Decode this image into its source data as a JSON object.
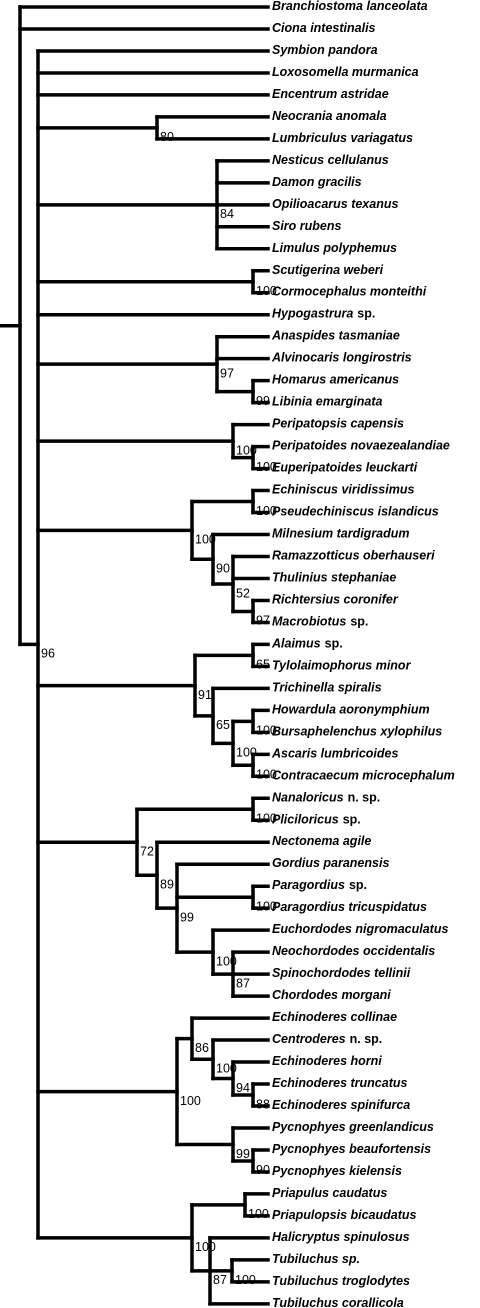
{
  "tree": {
    "children": [
      {
        "name": "Branchiostoma lanceolata"
      },
      {
        "name": "Ciona intestinalis"
      },
      {
        "support": 96,
        "children": [
          {
            "name": "Symbion pandora"
          },
          {
            "name": "Loxosomella murmanica"
          },
          {
            "name": "Encentrum astridae"
          },
          {
            "support": 80,
            "children": [
              {
                "name": "Neocrania anomala"
              },
              {
                "name": "Lumbriculus variagatus"
              }
            ]
          },
          {
            "support": 84,
            "children": [
              {
                "name": "Nesticus cellulanus"
              },
              {
                "name": "Damon gracilis"
              },
              {
                "name": "Opilioacarus texanus"
              },
              {
                "name": "Siro rubens"
              },
              {
                "name": "Limulus polyphemus"
              }
            ]
          },
          {
            "support": 100,
            "children": [
              {
                "name": "Scutigerina weberi"
              },
              {
                "name": "Cormocephalus monteithi"
              }
            ]
          },
          {
            "name": "Hypogastrura",
            "qualifier": "sp."
          },
          {
            "support": 97,
            "children": [
              {
                "name": "Anaspides tasmaniae"
              },
              {
                "name": "Alvinocaris longirostris"
              },
              {
                "support": 99,
                "children": [
                  {
                    "name": "Homarus americanus"
                  },
                  {
                    "name": "Libinia emarginata"
                  }
                ]
              }
            ]
          },
          {
            "support": 100,
            "children": [
              {
                "name": "Peripatopsis capensis"
              },
              {
                "support": 100,
                "children": [
                  {
                    "name": "Peripatoides novaezealandiae"
                  },
                  {
                    "name": "Euperipatoides leuckarti"
                  }
                ]
              }
            ]
          },
          {
            "support": 100,
            "children": [
              {
                "support": 100,
                "children": [
                  {
                    "name": "Echiniscus viridissimus"
                  },
                  {
                    "name": "Pseudechiniscus islandicus"
                  }
                ]
              },
              {
                "support": 90,
                "children": [
                  {
                    "name": "Milnesium tardigradum"
                  },
                  {
                    "support": 52,
                    "children": [
                      {
                        "name": "Ramazzotticus oberhauseri"
                      },
                      {
                        "name": "Thulinius stephaniae"
                      },
                      {
                        "support": 97,
                        "children": [
                          {
                            "name": "Richtersius coronifer"
                          },
                          {
                            "name": "Macrobiotus",
                            "qualifier": "sp."
                          }
                        ]
                      }
                    ]
                  }
                ]
              }
            ]
          },
          {
            "support": 91,
            "children": [
              {
                "support": 65,
                "children": [
                  {
                    "name": "Alaimus",
                    "qualifier": "sp."
                  },
                  {
                    "name": "Tylolaimophorus minor"
                  }
                ]
              },
              {
                "support": 65,
                "children": [
                  {
                    "name": "Trichinella spiralis"
                  },
                  {
                    "support": 100,
                    "children": [
                      {
                        "support": 100,
                        "children": [
                          {
                            "name": "Howardula aoronymphium"
                          },
                          {
                            "name": "Bursaphelenchus xylophilus"
                          }
                        ]
                      },
                      {
                        "support": 100,
                        "children": [
                          {
                            "name": "Ascaris lumbricoides"
                          },
                          {
                            "name": "Contracaecum microcephalum"
                          }
                        ]
                      }
                    ]
                  }
                ]
              }
            ]
          },
          {
            "support": 72,
            "children": [
              {
                "support": 100,
                "children": [
                  {
                    "name": "Nanaloricus",
                    "qualifier": "n. sp."
                  },
                  {
                    "name": "Pliciloricus",
                    "qualifier": "sp."
                  }
                ]
              },
              {
                "support": 89,
                "children": [
                  {
                    "name": "Nectonema agile"
                  },
                  {
                    "support": 99,
                    "children": [
                      {
                        "name": "Gordius paranensis"
                      },
                      {
                        "support": 100,
                        "children": [
                          {
                            "name": "Paragordius",
                            "qualifier": "sp."
                          },
                          {
                            "name": "Paragordius tricuspidatus"
                          }
                        ]
                      },
                      {
                        "support": 100,
                        "children": [
                          {
                            "name": "Euchordodes nigromaculatus"
                          },
                          {
                            "support": 87,
                            "children": [
                              {
                                "name": "Neochordodes occidentalis"
                              },
                              {
                                "name": "Spinochordodes tellinii"
                              },
                              {
                                "name": "Chordodes morgani"
                              }
                            ]
                          }
                        ]
                      }
                    ]
                  }
                ]
              }
            ]
          },
          {
            "support": 100,
            "children": [
              {
                "support": 86,
                "children": [
                  {
                    "name": "Echinoderes collinae"
                  },
                  {
                    "support": 100,
                    "children": [
                      {
                        "name": "Centroderes",
                        "qualifier": "n. sp."
                      },
                      {
                        "support": 94,
                        "children": [
                          {
                            "name": "Echinoderes horni"
                          },
                          {
                            "support": 88,
                            "children": [
                              {
                                "name": "Echinoderes truncatus"
                              },
                              {
                                "name": "Echinoderes spinifurca"
                              }
                            ]
                          }
                        ]
                      }
                    ]
                  }
                ]
              },
              {
                "support": 99,
                "children": [
                  {
                    "name": "Pycnophyes greenlandicus"
                  },
                  {
                    "support": 90,
                    "children": [
                      {
                        "name": "Pycnophyes beaufortensis"
                      },
                      {
                        "name": "Pycnophyes kielensis"
                      }
                    ]
                  }
                ]
              }
            ]
          },
          {
            "support": 100,
            "children": [
              {
                "support": 100,
                "children": [
                  {
                    "name": "Priapulus caudatus"
                  },
                  {
                    "name": "Priapulopsis bicaudatus"
                  }
                ]
              },
              {
                "support": 87,
                "children": [
                  {
                    "name": "Halicryptus spinulosus"
                  },
                  {
                    "support": 100,
                    "children": [
                      {
                        "name": "Tubiluchus sp."
                      },
                      {
                        "name": "Tubiluchus troglodytes"
                      }
                    ]
                  },
                  {
                    "name": "Tubiluchus corallicola"
                  }
                ]
              }
            ]
          }
        ]
      }
    ]
  }
}
